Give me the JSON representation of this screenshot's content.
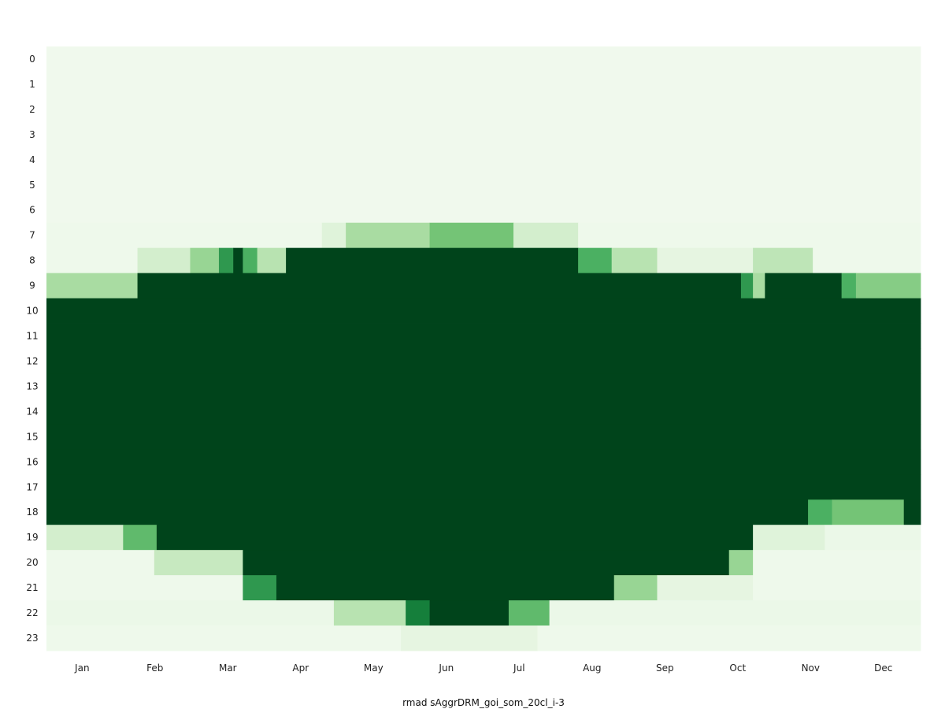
{
  "chart_data": {
    "type": "heatmap",
    "title": "",
    "xlabel": "rmad sAggrDRM_goi_som_20cl_i-3",
    "ylabel": "",
    "y_categories": [
      "0",
      "1",
      "2",
      "3",
      "4",
      "5",
      "6",
      "7",
      "8",
      "9",
      "10",
      "11",
      "12",
      "13",
      "14",
      "15",
      "16",
      "17",
      "18",
      "19",
      "20",
      "21",
      "22",
      "23"
    ],
    "x_categories": [
      "Jan",
      "Feb",
      "Mar",
      "Apr",
      "May",
      "Jun",
      "Jul",
      "Aug",
      "Sep",
      "Oct",
      "Nov",
      "Dec"
    ],
    "x_range_days": [
      1,
      365
    ],
    "colormap": "Greens",
    "color_range": [
      0,
      1
    ],
    "grid": false,
    "legend": "none",
    "segments": [
      {
        "hour": 0,
        "runs": [
          [
            1,
            365,
            0.05
          ]
        ]
      },
      {
        "hour": 1,
        "runs": [
          [
            1,
            365,
            0.05
          ]
        ]
      },
      {
        "hour": 2,
        "runs": [
          [
            1,
            365,
            0.05
          ]
        ]
      },
      {
        "hour": 3,
        "runs": [
          [
            1,
            365,
            0.05
          ]
        ]
      },
      {
        "hour": 4,
        "runs": [
          [
            1,
            365,
            0.05
          ]
        ]
      },
      {
        "hour": 5,
        "runs": [
          [
            1,
            365,
            0.05
          ]
        ]
      },
      {
        "hour": 6,
        "runs": [
          [
            1,
            365,
            0.05
          ]
        ]
      },
      {
        "hour": 7,
        "runs": [
          [
            1,
            115,
            0.06
          ],
          [
            116,
            125,
            0.15
          ],
          [
            126,
            160,
            0.35
          ],
          [
            161,
            195,
            0.5
          ],
          [
            196,
            222,
            0.2
          ],
          [
            223,
            365,
            0.06
          ]
        ]
      },
      {
        "hour": 8,
        "runs": [
          [
            1,
            38,
            0.06
          ],
          [
            39,
            60,
            0.2
          ],
          [
            61,
            72,
            0.4
          ],
          [
            73,
            78,
            0.7
          ],
          [
            79,
            82,
            1.0
          ],
          [
            83,
            88,
            0.6
          ],
          [
            89,
            100,
            0.3
          ],
          [
            101,
            222,
            1.0
          ],
          [
            223,
            236,
            0.6
          ],
          [
            237,
            255,
            0.3
          ],
          [
            256,
            295,
            0.12
          ],
          [
            296,
            320,
            0.28
          ],
          [
            321,
            365,
            0.06
          ]
        ]
      },
      {
        "hour": 9,
        "runs": [
          [
            1,
            38,
            0.35
          ],
          [
            39,
            290,
            1.0
          ],
          [
            291,
            295,
            0.7
          ],
          [
            296,
            300,
            0.35
          ],
          [
            301,
            332,
            1.0
          ],
          [
            333,
            338,
            0.6
          ],
          [
            339,
            365,
            0.45
          ]
        ]
      },
      {
        "hour": 10,
        "runs": [
          [
            1,
            365,
            1.0
          ]
        ]
      },
      {
        "hour": 11,
        "runs": [
          [
            1,
            365,
            1.0
          ]
        ]
      },
      {
        "hour": 12,
        "runs": [
          [
            1,
            365,
            1.0
          ]
        ]
      },
      {
        "hour": 13,
        "runs": [
          [
            1,
            365,
            1.0
          ]
        ]
      },
      {
        "hour": 14,
        "runs": [
          [
            1,
            365,
            1.0
          ]
        ]
      },
      {
        "hour": 15,
        "runs": [
          [
            1,
            365,
            1.0
          ]
        ]
      },
      {
        "hour": 16,
        "runs": [
          [
            1,
            365,
            1.0
          ]
        ]
      },
      {
        "hour": 17,
        "runs": [
          [
            1,
            365,
            1.0
          ]
        ]
      },
      {
        "hour": 18,
        "runs": [
          [
            1,
            318,
            1.0
          ],
          [
            319,
            328,
            0.6
          ],
          [
            329,
            358,
            0.5
          ],
          [
            359,
            365,
            1.0
          ]
        ]
      },
      {
        "hour": 19,
        "runs": [
          [
            1,
            32,
            0.2
          ],
          [
            33,
            46,
            0.55
          ],
          [
            47,
            295,
            1.0
          ],
          [
            296,
            325,
            0.15
          ],
          [
            326,
            365,
            0.08
          ]
        ]
      },
      {
        "hour": 20,
        "runs": [
          [
            1,
            45,
            0.06
          ],
          [
            46,
            82,
            0.25
          ],
          [
            83,
            285,
            1.0
          ],
          [
            286,
            295,
            0.4
          ],
          [
            296,
            365,
            0.06
          ]
        ]
      },
      {
        "hour": 21,
        "runs": [
          [
            1,
            82,
            0.06
          ],
          [
            83,
            96,
            0.7
          ],
          [
            97,
            237,
            1.0
          ],
          [
            238,
            255,
            0.4
          ],
          [
            256,
            295,
            0.12
          ],
          [
            296,
            365,
            0.06
          ]
        ]
      },
      {
        "hour": 22,
        "runs": [
          [
            1,
            120,
            0.08
          ],
          [
            121,
            150,
            0.3
          ],
          [
            151,
            160,
            0.8
          ],
          [
            161,
            193,
            1.0
          ],
          [
            194,
            210,
            0.55
          ],
          [
            211,
            365,
            0.08
          ]
        ]
      },
      {
        "hour": 23,
        "runs": [
          [
            1,
            148,
            0.06
          ],
          [
            149,
            205,
            0.12
          ],
          [
            206,
            365,
            0.06
          ]
        ]
      }
    ]
  }
}
